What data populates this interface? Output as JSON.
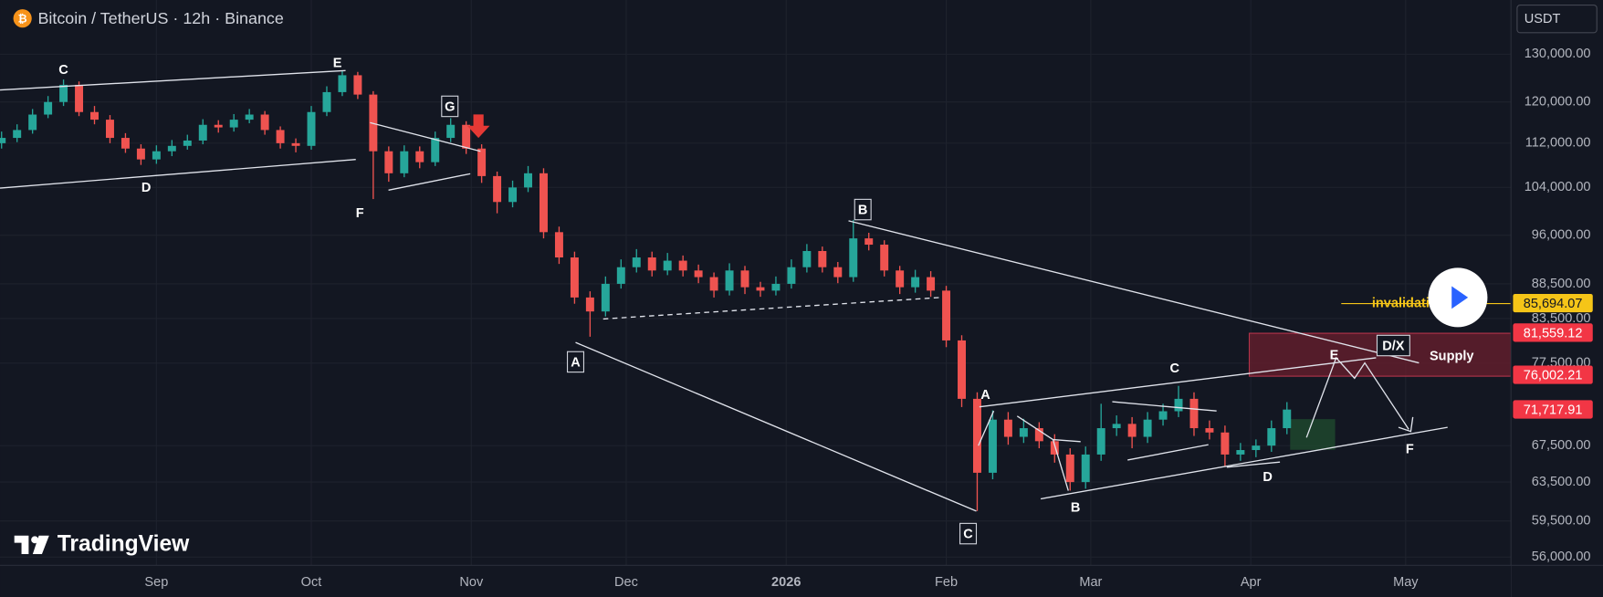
{
  "header": "Bitcoin / TetherUS · 12h · Binance",
  "currency": "USDT",
  "logo": "TradingView",
  "chart_data": {
    "type": "candlestick",
    "log_scale": true,
    "grid": true,
    "up_color": "#26a69a",
    "down_color": "#ef5350",
    "xlim": [
      0.7,
      293.4
    ],
    "ylim": [
      55240,
      142350
    ],
    "xticks": [
      {
        "value": 31,
        "label": "Sep"
      },
      {
        "value": 61,
        "label": "Oct"
      },
      {
        "value": 92,
        "label": "Nov"
      },
      {
        "value": 122,
        "label": "Dec"
      },
      {
        "value": 153,
        "label": "2026"
      },
      {
        "value": 184,
        "label": "Feb"
      },
      {
        "value": 212,
        "label": "Mar"
      },
      {
        "value": 243,
        "label": "Apr"
      },
      {
        "value": 273,
        "label": "May"
      }
    ],
    "yticks": [
      {
        "value": 130000,
        "label": "130,000.00"
      },
      {
        "value": 120000,
        "label": "120,000.00"
      },
      {
        "value": 112000,
        "label": "112,000.00"
      },
      {
        "value": 104000,
        "label": "104,000.00"
      },
      {
        "value": 96000,
        "label": "96,000.00"
      },
      {
        "value": 88500,
        "label": "88,500.00"
      },
      {
        "value": 83500,
        "label": "83,500.00"
      },
      {
        "value": 77500,
        "label": "77,500.00"
      },
      {
        "value": 67500,
        "label": "67,500.00"
      },
      {
        "value": 63500,
        "label": "63,500.00"
      },
      {
        "value": 59500,
        "label": "59,500.00"
      },
      {
        "value": 56000,
        "label": "56,000.00"
      }
    ],
    "x": [
      1,
      4,
      7,
      10,
      13,
      16,
      19,
      22,
      25,
      28,
      31,
      34,
      37,
      40,
      43,
      46,
      49,
      52,
      55,
      58,
      61,
      64,
      67,
      70,
      73,
      76,
      79,
      82,
      85,
      88,
      91,
      94,
      97,
      100,
      103,
      106,
      109,
      112,
      115,
      118,
      121,
      124,
      127,
      130,
      133,
      136,
      139,
      142,
      145,
      148,
      151,
      154,
      157,
      160,
      163,
      166,
      169,
      172,
      175,
      178,
      181,
      184,
      187,
      190,
      193,
      196,
      199,
      202,
      205,
      208,
      211,
      214,
      217,
      220,
      223,
      226,
      229,
      232,
      235,
      238,
      241,
      244,
      247,
      250
    ],
    "open": [
      112000,
      113000,
      114500,
      117500,
      120000,
      123500,
      118000,
      116500,
      113000,
      111000,
      109000,
      110500,
      111500,
      112500,
      115500,
      115000,
      116500,
      117500,
      114500,
      112000,
      111500,
      118000,
      122000,
      125500,
      121500,
      110500,
      106500,
      110500,
      108500,
      113000,
      115500,
      111000,
      106000,
      101500,
      104000,
      106500,
      96500,
      92500,
      86500,
      84500,
      88500,
      91000,
      92500,
      90500,
      92000,
      90500,
      89500,
      87500,
      90500,
      88000,
      87500,
      88500,
      91000,
      93500,
      91000,
      89500,
      95500,
      94500,
      90500,
      88000,
      89500,
      87500,
      80500,
      73000,
      64500,
      70500,
      68500,
      69500,
      68000,
      66500,
      63500,
      66500,
      69500,
      70000,
      68500,
      70500,
      71500,
      73000,
      69500,
      69000,
      66500,
      67000,
      67500,
      69500
    ],
    "high": [
      114200,
      115600,
      118600,
      121200,
      124600,
      124200,
      119200,
      117400,
      113900,
      111800,
      111600,
      112600,
      113600,
      116600,
      116400,
      117600,
      118600,
      118200,
      115200,
      112900,
      119200,
      123200,
      126500,
      126200,
      122200,
      111400,
      111600,
      111400,
      114200,
      116800,
      116200,
      111800,
      106800,
      105200,
      107800,
      107400,
      97400,
      93400,
      87400,
      89600,
      92200,
      93800,
      93400,
      93200,
      92800,
      91400,
      90200,
      91600,
      91200,
      88800,
      89600,
      92200,
      94600,
      94200,
      91800,
      98500,
      96400,
      95200,
      91200,
      90600,
      90400,
      88200,
      81200,
      73800,
      71600,
      71400,
      70600,
      70200,
      68800,
      67200,
      67400,
      72400,
      71000,
      70800,
      71400,
      72400,
      74600,
      73800,
      70400,
      69800,
      67800,
      68200,
      70400,
      72600
    ],
    "low": [
      111000,
      112200,
      113800,
      116800,
      119200,
      117200,
      115600,
      112000,
      110200,
      108000,
      108200,
      109600,
      110800,
      111800,
      114000,
      114200,
      115800,
      113600,
      111000,
      110300,
      110800,
      117200,
      121200,
      120600,
      102000,
      105000,
      105800,
      107400,
      107800,
      112200,
      110000,
      104800,
      99600,
      100600,
      103200,
      95500,
      91500,
      85600,
      81000,
      83800,
      87800,
      90200,
      89600,
      89800,
      89600,
      88600,
      86500,
      86800,
      87000,
      86600,
      86800,
      87800,
      90200,
      90200,
      88600,
      88800,
      93600,
      89600,
      87000,
      87200,
      86600,
      79600,
      72000,
      60500,
      63800,
      67600,
      67800,
      67200,
      65600,
      62600,
      62800,
      65800,
      68600,
      67200,
      67800,
      69800,
      70800,
      68600,
      68200,
      65200,
      65800,
      66200,
      66800,
      68800
    ],
    "close": [
      113000,
      114500,
      117500,
      120000,
      123500,
      118000,
      116500,
      113000,
      111000,
      109000,
      110500,
      111500,
      112500,
      115500,
      115000,
      116500,
      117500,
      114500,
      112000,
      111500,
      118000,
      122000,
      125500,
      121500,
      110500,
      106500,
      110500,
      108500,
      113000,
      115500,
      111000,
      106000,
      101500,
      104000,
      106500,
      96500,
      92500,
      86500,
      84500,
      88500,
      91000,
      92500,
      90500,
      92000,
      90500,
      89500,
      87500,
      90500,
      88000,
      87500,
      88500,
      91000,
      93500,
      91000,
      89500,
      95500,
      94500,
      90500,
      88000,
      89500,
      87500,
      80500,
      73000,
      64500,
      70500,
      68500,
      69500,
      68000,
      66500,
      63500,
      66500,
      69500,
      70000,
      68500,
      70500,
      71500,
      73000,
      69500,
      69000,
      66500,
      67000,
      67500,
      69500,
      71700
    ],
    "price_tags": [
      {
        "value": 85694.07,
        "label": "85,694.07",
        "color": "#f5c518"
      },
      {
        "value": 81559.12,
        "label": "81,559.12",
        "color": "#f23645"
      },
      {
        "value": 76002.21,
        "label": "76,002.21",
        "color": "#f23645"
      },
      {
        "value": 71717.91,
        "label": "71,717.91",
        "color": "#f23645"
      }
    ],
    "annotations": [
      "C",
      "D",
      "E",
      "F",
      "G",
      "A",
      "B",
      "C",
      "A",
      "B",
      "C",
      "D",
      "E",
      "D/X",
      "F"
    ],
    "invalidation_label": "invalidation level",
    "supply_label": "Supply"
  }
}
